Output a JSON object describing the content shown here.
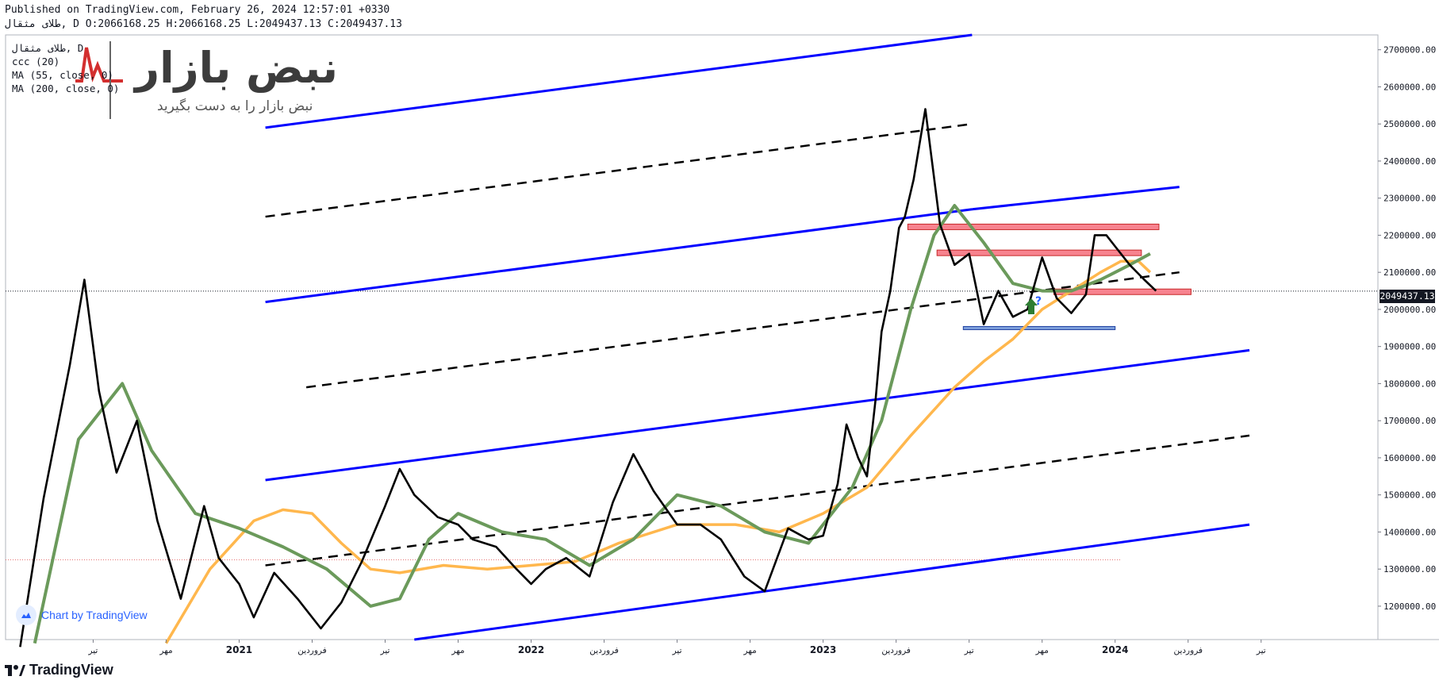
{
  "header": {
    "published_line": "Published on TradingView.com, February 26, 2024 12:57:01 +0330",
    "ohlc_line": "طلای مثقال, D O:2066168.25 H:2066168.25 L:2049437.13 C:2049437.13"
  },
  "legend": {
    "symbol_line": "طلای مثقال, D",
    "indicator1": "ccc (20)",
    "indicator2": "MA (55, close, 0)",
    "indicator3": "MA (200, close, 0)"
  },
  "watermark": {
    "logo_text": "نبض بازار",
    "tagline": "نبض بازار را به دست بگیرید"
  },
  "badge": {
    "label": "Chart by TradingView"
  },
  "footer": {
    "brand": "TradingView"
  },
  "colors": {
    "price": "#000000",
    "ma55": "#6b9a5b",
    "ma200": "#ffb74d",
    "channel": "#0000ff",
    "midline": "#000000",
    "zone_red": "#f7838f",
    "zone_blue": "#7d9fdc",
    "arrow": "#2e7d32",
    "logo_red": "#d32f2f"
  },
  "chart_data": {
    "type": "line",
    "current_price": "2049437.13",
    "y_axis": {
      "ylim": [
        1110000,
        2740000
      ],
      "ticks": [
        "2700000.00",
        "2600000.00",
        "2500000.00",
        "2400000.00",
        "2300000.00",
        "2200000.00",
        "2100000.00",
        "2000000.00",
        "1900000.00",
        "1800000.00",
        "1700000.00",
        "1600000.00",
        "1500000.00",
        "1400000.00",
        "1300000.00",
        "1200000.00"
      ]
    },
    "x_axis": {
      "labels": [
        "تیر",
        "مهر",
        "2021",
        "فروردین",
        "تیر",
        "مهر",
        "2022",
        "فروردین",
        "تیر",
        "مهر",
        "2023",
        "فروردین",
        "تیر",
        "مهر",
        "2024",
        "فروردین",
        "تیر"
      ],
      "bold": [
        "2021",
        "2022",
        "2023",
        "2024"
      ],
      "x": [
        2020.5,
        2020.75,
        2021.0,
        2021.25,
        2021.5,
        2021.75,
        2022.0,
        2022.25,
        2022.5,
        2022.75,
        2023.0,
        2023.25,
        2023.5,
        2023.75,
        2024.0,
        2024.25,
        2024.5
      ]
    },
    "series": [
      {
        "name": "price",
        "x": [
          2020.25,
          2020.33,
          2020.42,
          2020.47,
          2020.52,
          2020.58,
          2020.65,
          2020.72,
          2020.8,
          2020.88,
          2020.93,
          2021.0,
          2021.05,
          2021.12,
          2021.2,
          2021.28,
          2021.35,
          2021.42,
          2021.5,
          2021.55,
          2021.6,
          2021.68,
          2021.75,
          2021.8,
          2021.88,
          2021.95,
          2022.0,
          2022.05,
          2022.12,
          2022.2,
          2022.28,
          2022.35,
          2022.42,
          2022.5,
          2022.58,
          2022.65,
          2022.73,
          2022.8,
          2022.88,
          2022.95,
          2023.0,
          2023.05,
          2023.08,
          2023.12,
          2023.15,
          2023.18,
          2023.2,
          2023.23,
          2023.26,
          2023.28,
          2023.31,
          2023.35,
          2023.4,
          2023.45,
          2023.5,
          2023.55,
          2023.6,
          2023.65,
          2023.7,
          2023.75,
          2023.8,
          2023.85,
          2023.9,
          2023.93,
          2023.97,
          2024.0,
          2024.05,
          2024.1,
          2024.14
        ],
        "y": [
          1090000,
          1490000,
          1850000,
          2080000,
          1780000,
          1560000,
          1700000,
          1430000,
          1220000,
          1470000,
          1330000,
          1260000,
          1170000,
          1290000,
          1220000,
          1140000,
          1210000,
          1320000,
          1470000,
          1570000,
          1500000,
          1440000,
          1420000,
          1380000,
          1360000,
          1300000,
          1260000,
          1300000,
          1330000,
          1280000,
          1480000,
          1610000,
          1510000,
          1420000,
          1420000,
          1380000,
          1280000,
          1240000,
          1410000,
          1380000,
          1390000,
          1530000,
          1690000,
          1600000,
          1550000,
          1760000,
          1940000,
          2050000,
          2220000,
          2250000,
          2350000,
          2540000,
          2230000,
          2120000,
          2150000,
          1960000,
          2050000,
          1980000,
          2000000,
          2140000,
          2030000,
          1990000,
          2040000,
          2200000,
          2200000,
          2170000,
          2120000,
          2080000,
          2050000
        ]
      },
      {
        "name": "MA (55, close, 0)",
        "x": [
          2020.3,
          2020.45,
          2020.6,
          2020.7,
          2020.85,
          2021.0,
          2021.15,
          2021.3,
          2021.45,
          2021.55,
          2021.65,
          2021.75,
          2021.9,
          2022.05,
          2022.2,
          2022.35,
          2022.5,
          2022.65,
          2022.8,
          2022.95,
          2023.1,
          2023.2,
          2023.3,
          2023.38,
          2023.45,
          2023.55,
          2023.65,
          2023.75,
          2023.85,
          2023.95,
          2024.05,
          2024.12
        ],
        "y": [
          1100000,
          1650000,
          1800000,
          1620000,
          1450000,
          1410000,
          1360000,
          1300000,
          1200000,
          1220000,
          1380000,
          1450000,
          1400000,
          1380000,
          1310000,
          1380000,
          1500000,
          1470000,
          1400000,
          1370000,
          1520000,
          1700000,
          2000000,
          2200000,
          2280000,
          2180000,
          2070000,
          2050000,
          2050000,
          2080000,
          2120000,
          2150000
        ]
      },
      {
        "name": "MA (200, close, 0)",
        "x": [
          2020.75,
          2020.9,
          2021.05,
          2021.15,
          2021.25,
          2021.35,
          2021.45,
          2021.55,
          2021.7,
          2021.85,
          2022.0,
          2022.15,
          2022.3,
          2022.5,
          2022.7,
          2022.85,
          2023.0,
          2023.15,
          2023.3,
          2023.45,
          2023.55,
          2023.65,
          2023.75,
          2023.85,
          2023.95,
          2024.02,
          2024.08,
          2024.12
        ],
        "y": [
          1100000,
          1300000,
          1430000,
          1460000,
          1450000,
          1370000,
          1300000,
          1290000,
          1310000,
          1300000,
          1310000,
          1320000,
          1370000,
          1420000,
          1420000,
          1400000,
          1450000,
          1520000,
          1660000,
          1790000,
          1860000,
          1920000,
          2000000,
          2050000,
          2100000,
          2130000,
          2130000,
          2100000
        ]
      }
    ],
    "channels": [
      {
        "style": "solid-blue",
        "x": [
          2021.09,
          2023.51
        ],
        "y": [
          2490000,
          2740000
        ]
      },
      {
        "style": "dashed-black",
        "x": [
          2021.09,
          2023.51
        ],
        "y": [
          2250000,
          2500000
        ]
      },
      {
        "style": "solid-blue",
        "x": [
          2021.09,
          2023.51
        ],
        "y": [
          2020000,
          2270000
        ]
      },
      {
        "style": "solid-blue",
        "x": [
          2023.51,
          2024.22
        ],
        "y": [
          2270000,
          2330000
        ]
      },
      {
        "style": "dashed-black",
        "x": [
          2021.23,
          2024.22
        ],
        "y": [
          1790000,
          2100000
        ]
      },
      {
        "style": "solid-blue",
        "x": [
          2021.09,
          2024.46
        ],
        "y": [
          1540000,
          1890000
        ]
      },
      {
        "style": "dashed-black",
        "x": [
          2021.09,
          2024.46
        ],
        "y": [
          1310000,
          1660000
        ]
      },
      {
        "style": "solid-blue",
        "x": [
          2021.6,
          2024.46
        ],
        "y": [
          1110000,
          1420000
        ]
      }
    ],
    "zones": [
      {
        "color": "red",
        "x": [
          2023.29,
          2024.15
        ],
        "y": [
          2215000,
          2230000
        ]
      },
      {
        "color": "red",
        "x": [
          2023.39,
          2024.09
        ],
        "y": [
          2145000,
          2160000
        ]
      },
      {
        "color": "red",
        "x": [
          2023.79,
          2024.26
        ],
        "y": [
          2040000,
          2055000
        ]
      },
      {
        "color": "blue",
        "x": [
          2023.48,
          2024.0
        ],
        "y": [
          1946000,
          1954000
        ]
      }
    ],
    "current_price_value": 2049437.13,
    "dotted_level": 1325000
  }
}
